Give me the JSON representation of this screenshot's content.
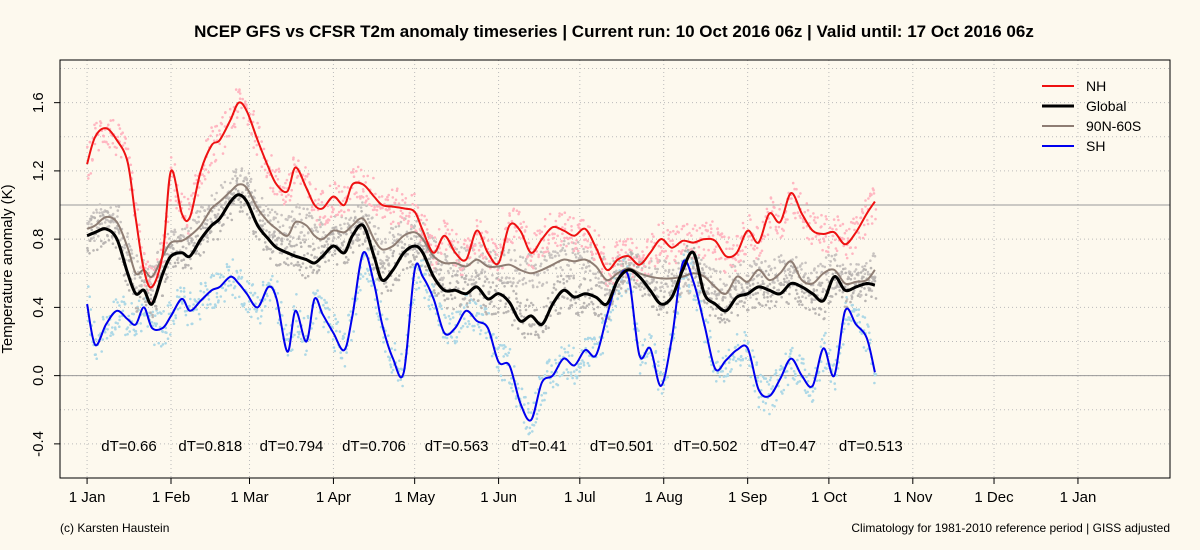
{
  "chart_data": {
    "type": "line",
    "title": "NCEP GFS vs CFSR T2m anomaly timeseries | Current run: 10 Oct 2016 06z | Valid until: 17 Oct 2016 06z",
    "ylabel": "Temperature anomaly (K)",
    "xlabel": "",
    "ylim": [
      -0.6,
      1.85
    ],
    "yticks": [
      -0.4,
      0.0,
      0.4,
      0.8,
      1.2,
      1.6
    ],
    "ytick_labels": [
      "-0.4",
      "0.0",
      "0.4",
      "0.8",
      "1.2",
      "1.6"
    ],
    "xlim": [
      -10,
      400
    ],
    "month_ticks": [
      0,
      31,
      60,
      91,
      121,
      152,
      182,
      213,
      244,
      274,
      305,
      335,
      366
    ],
    "month_labels": [
      "1 Jan",
      "1 Feb",
      "1 Mar",
      "1 Apr",
      "1 May",
      "1 Jun",
      "1 Jul",
      "1 Aug",
      "1 Sep",
      "1 Oct",
      "1 Nov",
      "1 Dec",
      "1 Jan"
    ],
    "reference_lines": [
      0.0,
      1.0
    ],
    "grid": true,
    "legend_position": "top-right",
    "series": [
      {
        "name": "NH",
        "color": "#ee1111",
        "dot_color": "#ffb6c1",
        "x": [
          0,
          3,
          7,
          11,
          15,
          18,
          21,
          24,
          28,
          31,
          35,
          38,
          42,
          46,
          49,
          53,
          56,
          59,
          63,
          67,
          70,
          74,
          77,
          81,
          84,
          87,
          91,
          95,
          98,
          102,
          106,
          109,
          113,
          117,
          121,
          124,
          128,
          132,
          136,
          140,
          144,
          148,
          152,
          156,
          160,
          164,
          168,
          172,
          176,
          180,
          184,
          188,
          192,
          196,
          200,
          204,
          208,
          212,
          216,
          220,
          224,
          228,
          232,
          236,
          240,
          244,
          248,
          252,
          256,
          260,
          264,
          268,
          272,
          276,
          280,
          284,
          288,
          291
        ],
        "values": [
          1.24,
          1.4,
          1.45,
          1.38,
          1.25,
          0.92,
          0.62,
          0.52,
          0.72,
          1.2,
          0.95,
          0.93,
          1.2,
          1.35,
          1.38,
          1.5,
          1.6,
          1.55,
          1.38,
          1.22,
          1.12,
          1.08,
          1.22,
          1.1,
          1.0,
          0.98,
          1.05,
          1.0,
          1.12,
          1.12,
          1.05,
          1.0,
          0.99,
          0.98,
          0.96,
          0.85,
          0.72,
          0.82,
          0.72,
          0.68,
          0.85,
          0.72,
          0.66,
          0.88,
          0.85,
          0.72,
          0.8,
          0.87,
          0.85,
          0.82,
          0.86,
          0.75,
          0.62,
          0.68,
          0.7,
          0.65,
          0.72,
          0.8,
          0.75,
          0.79,
          0.78,
          0.8,
          0.79,
          0.7,
          0.72,
          0.85,
          0.78,
          0.95,
          0.9,
          1.07,
          0.95,
          0.85,
          0.83,
          0.84,
          0.77,
          0.84,
          0.95,
          1.02
        ]
      },
      {
        "name": "Global",
        "color": "#000000",
        "dot_color": "#b9b5b2",
        "x": [
          0,
          3,
          7,
          11,
          15,
          18,
          21,
          24,
          28,
          31,
          35,
          38,
          42,
          46,
          49,
          53,
          56,
          59,
          63,
          67,
          70,
          74,
          77,
          81,
          84,
          87,
          91,
          95,
          98,
          102,
          106,
          109,
          113,
          117,
          121,
          124,
          128,
          132,
          136,
          140,
          144,
          148,
          152,
          156,
          160,
          164,
          168,
          172,
          176,
          180,
          184,
          188,
          192,
          196,
          200,
          204,
          208,
          212,
          216,
          220,
          224,
          228,
          232,
          236,
          240,
          244,
          248,
          252,
          256,
          260,
          264,
          268,
          272,
          276,
          280,
          284,
          288,
          291
        ],
        "values": [
          0.82,
          0.84,
          0.86,
          0.8,
          0.6,
          0.48,
          0.5,
          0.42,
          0.6,
          0.7,
          0.72,
          0.7,
          0.8,
          0.88,
          0.92,
          1.02,
          1.06,
          1.02,
          0.88,
          0.8,
          0.75,
          0.72,
          0.7,
          0.68,
          0.66,
          0.7,
          0.76,
          0.72,
          0.82,
          0.88,
          0.7,
          0.56,
          0.62,
          0.72,
          0.76,
          0.72,
          0.58,
          0.5,
          0.5,
          0.48,
          0.52,
          0.45,
          0.48,
          0.43,
          0.32,
          0.35,
          0.3,
          0.42,
          0.5,
          0.46,
          0.48,
          0.46,
          0.42,
          0.56,
          0.62,
          0.58,
          0.5,
          0.42,
          0.46,
          0.62,
          0.72,
          0.48,
          0.42,
          0.38,
          0.46,
          0.48,
          0.52,
          0.5,
          0.48,
          0.54,
          0.52,
          0.48,
          0.44,
          0.58,
          0.5,
          0.52,
          0.54,
          0.53
        ]
      },
      {
        "name": "90N-60S",
        "color": "#8e7d73",
        "dot_color": "#c8c3c0",
        "x": [
          0,
          3,
          7,
          11,
          15,
          18,
          21,
          24,
          28,
          31,
          35,
          38,
          42,
          46,
          49,
          53,
          56,
          59,
          63,
          67,
          70,
          74,
          77,
          81,
          84,
          87,
          91,
          95,
          98,
          102,
          106,
          109,
          113,
          117,
          121,
          124,
          128,
          132,
          136,
          140,
          144,
          148,
          152,
          156,
          160,
          164,
          168,
          172,
          176,
          180,
          184,
          188,
          192,
          196,
          200,
          204,
          208,
          212,
          216,
          220,
          224,
          228,
          232,
          236,
          240,
          244,
          248,
          252,
          256,
          260,
          264,
          268,
          272,
          276,
          280,
          284,
          288,
          291
        ],
        "values": [
          0.86,
          0.88,
          0.93,
          0.9,
          0.75,
          0.6,
          0.62,
          0.58,
          0.7,
          0.78,
          0.79,
          0.82,
          0.88,
          0.98,
          1.02,
          1.08,
          1.12,
          1.1,
          0.98,
          0.9,
          0.86,
          0.82,
          0.9,
          0.88,
          0.82,
          0.8,
          0.85,
          0.84,
          0.88,
          0.92,
          0.8,
          0.74,
          0.76,
          0.82,
          0.84,
          0.8,
          0.7,
          0.66,
          0.66,
          0.64,
          0.68,
          0.64,
          0.64,
          0.65,
          0.62,
          0.6,
          0.62,
          0.65,
          0.68,
          0.67,
          0.68,
          0.64,
          0.56,
          0.6,
          0.63,
          0.6,
          0.58,
          0.57,
          0.57,
          0.58,
          0.6,
          0.58,
          0.52,
          0.48,
          0.58,
          0.55,
          0.62,
          0.56,
          0.6,
          0.67,
          0.56,
          0.54,
          0.6,
          0.62,
          0.54,
          0.55,
          0.56,
          0.62
        ]
      },
      {
        "name": "SH",
        "color": "#0000ee",
        "dot_color": "#add8e6",
        "x": [
          0,
          3,
          7,
          11,
          15,
          18,
          21,
          24,
          28,
          31,
          35,
          38,
          42,
          46,
          49,
          53,
          56,
          59,
          63,
          67,
          70,
          74,
          77,
          81,
          84,
          87,
          91,
          95,
          98,
          102,
          106,
          109,
          113,
          117,
          121,
          124,
          128,
          132,
          136,
          140,
          144,
          148,
          152,
          156,
          160,
          164,
          168,
          172,
          176,
          180,
          184,
          188,
          192,
          196,
          200,
          204,
          208,
          212,
          216,
          220,
          224,
          228,
          232,
          236,
          240,
          244,
          248,
          252,
          256,
          260,
          264,
          268,
          272,
          276,
          280,
          284,
          288,
          291
        ],
        "values": [
          0.42,
          0.18,
          0.3,
          0.38,
          0.33,
          0.3,
          0.4,
          0.28,
          0.28,
          0.35,
          0.45,
          0.38,
          0.44,
          0.5,
          0.52,
          0.58,
          0.54,
          0.48,
          0.4,
          0.52,
          0.45,
          0.14,
          0.38,
          0.2,
          0.45,
          0.36,
          0.25,
          0.15,
          0.35,
          0.72,
          0.54,
          0.3,
          0.1,
          0.02,
          0.62,
          0.58,
          0.45,
          0.25,
          0.28,
          0.38,
          0.32,
          0.28,
          0.08,
          0.06,
          -0.16,
          -0.26,
          -0.04,
          0.0,
          0.1,
          0.06,
          0.15,
          0.12,
          0.35,
          0.56,
          0.58,
          0.12,
          0.16,
          -0.06,
          0.22,
          0.66,
          0.55,
          0.3,
          0.04,
          0.09,
          0.15,
          0.16,
          -0.08,
          -0.12,
          -0.02,
          0.1,
          0.0,
          -0.06,
          0.16,
          0.0,
          0.38,
          0.3,
          0.22,
          0.02
        ]
      }
    ],
    "annotations": [
      "dT=0.66",
      "dT=0.818",
      "dT=0.794",
      "dT=0.706",
      "dT=0.563",
      "dT=0.41",
      "dT=0.501",
      "dT=0.502",
      "dT=0.47",
      "dT=0.513"
    ]
  },
  "footer": {
    "left": "(c) Karsten Haustein",
    "right": "Climatology for 1981-2010 reference period | GISS adjusted"
  }
}
